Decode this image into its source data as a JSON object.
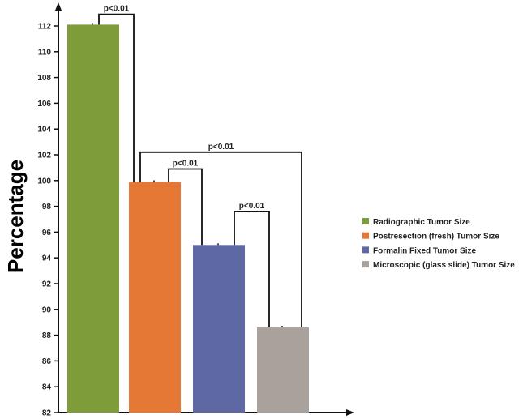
{
  "chart_data": {
    "type": "bar",
    "title": "",
    "xlabel": "",
    "ylabel": "Percentage",
    "ylim": [
      82,
      113.5
    ],
    "yticks": [
      82,
      84,
      86,
      88,
      90,
      92,
      94,
      96,
      98,
      100,
      102,
      104,
      106,
      108,
      110,
      112
    ],
    "grid": false,
    "legend_position": "right",
    "categories": [
      "Radiographic Tumor Size",
      "Postresection (fresh) Tumor Size",
      "Formalin Fixed Tumor Size",
      "Microscopic (glass slide) Tumor Size"
    ],
    "values": [
      112.1,
      99.9,
      95.0,
      88.6
    ],
    "colors": [
      "#7f9c3a",
      "#e67835",
      "#5e68a2",
      "#a9a19c"
    ],
    "annotations": [
      {
        "from": 0,
        "to": 1,
        "label": "p<0.01",
        "level": 112.9
      },
      {
        "from": 1,
        "to": 3,
        "label": "p<0.01",
        "level": 102.2
      },
      {
        "from": 1,
        "to": 2,
        "label": "p<0.01",
        "level": 100.9
      },
      {
        "from": 2,
        "to": 3,
        "label": "p<0.01",
        "level": 97.6
      }
    ]
  }
}
